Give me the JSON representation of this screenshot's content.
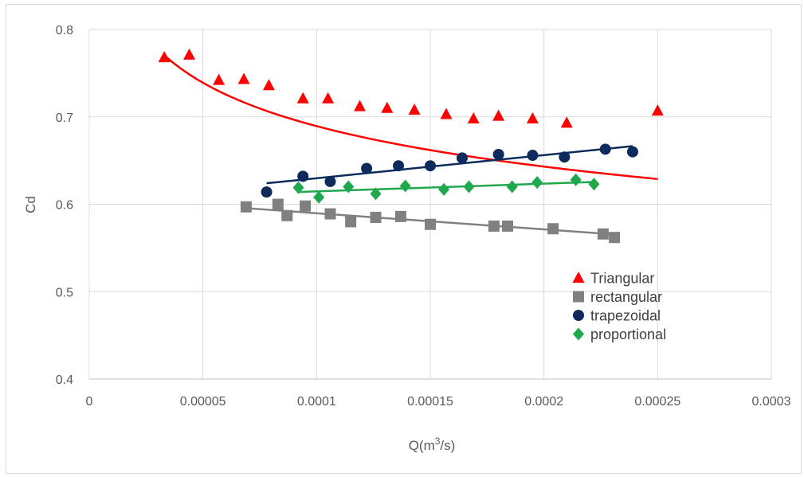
{
  "chart_data": {
    "type": "scatter",
    "title": "",
    "xlabel": "Q(m",
    "xlabel_sup": "3",
    "xlabel_tail": "/s)",
    "ylabel": "Cd",
    "xlim": [
      0,
      0.0003
    ],
    "ylim": [
      0.4,
      0.8
    ],
    "x_ticks": [
      0,
      5e-05,
      0.0001,
      0.00015,
      0.0002,
      0.00025,
      0.0003
    ],
    "x_tick_labels": [
      "0",
      "0.00005",
      "0.0001",
      "0.00015",
      "0.0002",
      "0.00025",
      "0.0003"
    ],
    "y_ticks": [
      0.4,
      0.5,
      0.6,
      0.7,
      0.8
    ],
    "y_tick_labels": [
      "0.4",
      "0.5",
      "0.6",
      "0.7",
      "0.8"
    ],
    "grid": true,
    "legend_position": "bottom-right",
    "series": [
      {
        "name": "Triangular",
        "marker": "triangle",
        "color": "#ff0000",
        "x": [
          3.3e-05,
          4.4e-05,
          5.7e-05,
          6.8e-05,
          7.9e-05,
          9.4e-05,
          0.000105,
          0.000119,
          0.000131,
          0.000143,
          0.000157,
          0.000169,
          0.00018,
          0.000195,
          0.00021,
          0.00025
        ],
        "y": [
          0.768,
          0.771,
          0.742,
          0.743,
          0.736,
          0.721,
          0.721,
          0.712,
          0.71,
          0.708,
          0.703,
          0.698,
          0.701,
          0.698,
          0.693,
          0.707
        ],
        "trend": {
          "type": "power",
          "x_start": 3.3e-05,
          "x_end": 0.00025,
          "a": 0.2737,
          "b": -0.1003
        }
      },
      {
        "name": "rectangular",
        "marker": "square",
        "color": "#808080",
        "x": [
          6.9e-05,
          8.3e-05,
          8.7e-05,
          9.5e-05,
          0.000106,
          0.000115,
          0.000126,
          0.000137,
          0.00015,
          0.000178,
          0.000184,
          0.000204,
          0.000226,
          0.000231
        ],
        "y": [
          0.597,
          0.6,
          0.587,
          0.598,
          0.589,
          0.58,
          0.585,
          0.586,
          0.577,
          0.575,
          0.575,
          0.572,
          0.566,
          0.562
        ],
        "trend": {
          "type": "linear",
          "x_start": 6.9e-05,
          "x_end": 0.000231,
          "y_start": 0.5955,
          "y_end": 0.5655
        }
      },
      {
        "name": "trapezoidal",
        "marker": "circle",
        "color": "#0d2a5c",
        "x": [
          7.8e-05,
          9.4e-05,
          0.000106,
          0.000122,
          0.000136,
          0.00015,
          0.000164,
          0.00018,
          0.000195,
          0.000209,
          0.000227,
          0.000239
        ],
        "y": [
          0.614,
          0.632,
          0.626,
          0.641,
          0.644,
          0.644,
          0.653,
          0.657,
          0.656,
          0.654,
          0.663,
          0.66
        ],
        "trend": {
          "type": "linear",
          "x_start": 7.8e-05,
          "x_end": 0.000239,
          "y_start": 0.624,
          "y_end": 0.6665
        }
      },
      {
        "name": "proportional",
        "marker": "diamond",
        "color": "#1fa84d",
        "x": [
          9.2e-05,
          0.000101,
          0.000114,
          0.000126,
          0.000139,
          0.000156,
          0.000167,
          0.000186,
          0.000197,
          0.000214,
          0.000222
        ],
        "y": [
          0.619,
          0.608,
          0.62,
          0.612,
          0.621,
          0.617,
          0.62,
          0.62,
          0.625,
          0.628,
          0.623
        ],
        "trend": {
          "type": "linear",
          "x_start": 9.2e-05,
          "x_end": 0.000222,
          "y_start": 0.614,
          "y_end": 0.6255
        }
      }
    ]
  }
}
